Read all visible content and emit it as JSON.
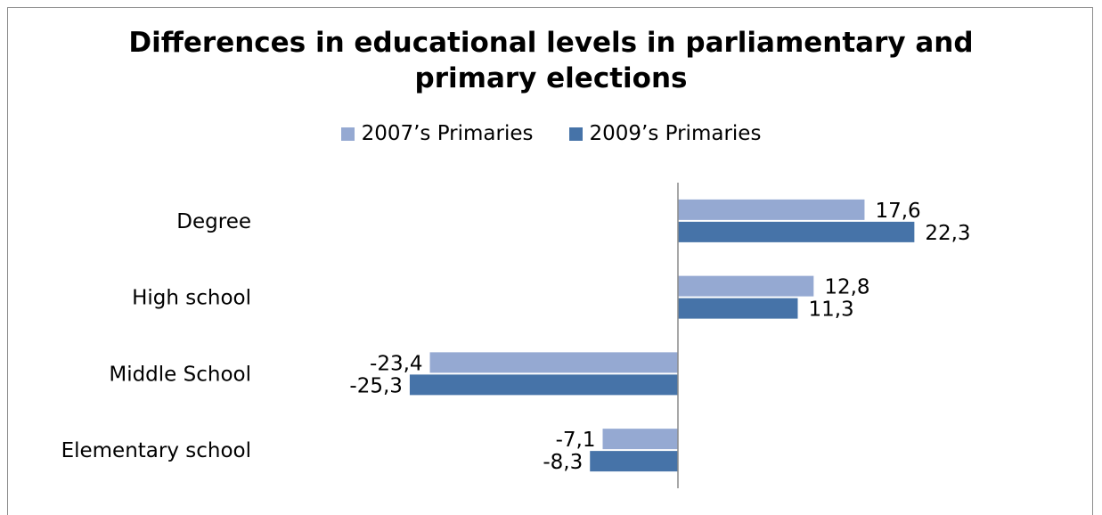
{
  "chart_data": {
    "type": "bar",
    "orientation": "horizontal",
    "title": "Differences in educational levels in parliamentary and primary elections",
    "title_lines": [
      "Differences in educational levels in parliamentary and",
      "primary elections"
    ],
    "categories": [
      "Degree",
      "High school",
      "Middle School",
      "Elementary school"
    ],
    "series": [
      {
        "name": "2007’s Primaries",
        "values": [
          17.6,
          12.8,
          -23.4,
          -7.1
        ],
        "labels": [
          "17,6",
          "12,8",
          "-23,4",
          "-7,1"
        ],
        "color": "#95a9d2"
      },
      {
        "name": "2009’s Primaries",
        "values": [
          22.3,
          11.3,
          -25.3,
          -8.3
        ],
        "labels": [
          "22,3",
          "11,3",
          "-25,3",
          "-8,3"
        ],
        "color": "#4673a8"
      }
    ],
    "legend_position": "top",
    "grid": false
  }
}
